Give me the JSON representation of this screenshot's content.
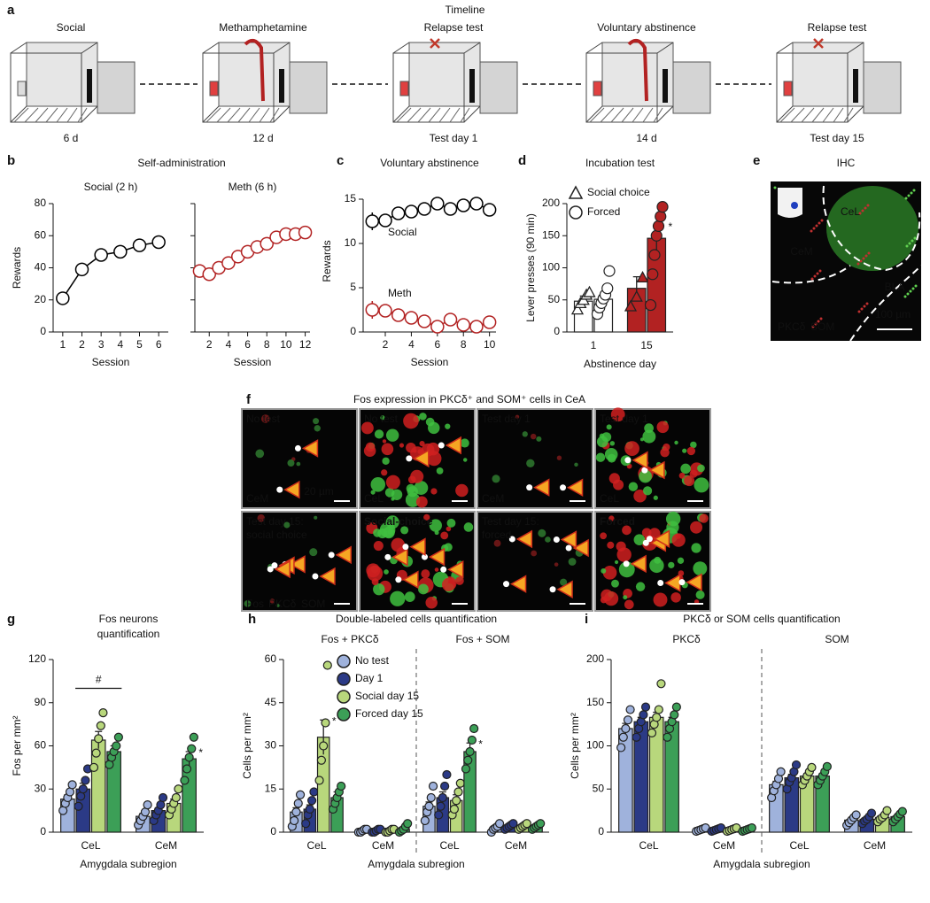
{
  "figure": {
    "panel_labels": [
      "a",
      "b",
      "c",
      "d",
      "e",
      "f",
      "g",
      "h",
      "i"
    ],
    "timeline": {
      "title": "Timeline",
      "stages": [
        {
          "label": "Social",
          "color": "#000000",
          "duration": "6 d"
        },
        {
          "label": "Methamphetamine",
          "color": "#b22222",
          "duration": "12 d"
        },
        {
          "label": "Relapse test",
          "color": "#b22222",
          "duration": "Test day 1"
        },
        {
          "label": "Voluntary abstinence",
          "color": "#1f3fbf",
          "duration": "14 d"
        },
        {
          "label": "Relapse test",
          "color": "#b22222",
          "duration": "Test day 15"
        }
      ]
    },
    "ihc": {
      "title": "IHC",
      "regions": [
        "CeL",
        "CeM",
        "BLA"
      ],
      "channels": [
        "PKCδ",
        "SOM"
      ],
      "scale_bar": "100 µm"
    },
    "fos_images": {
      "title": "Fos expression in PKCδ⁺ and SOM⁺ cells in CeA",
      "tiles": [
        {
          "label": [
            "No test"
          ],
          "region": "CeM"
        },
        {
          "label": [
            "No test"
          ],
          "region": "CeL"
        },
        {
          "label": [
            "Test day 1"
          ],
          "region": "CeM"
        },
        {
          "label": [
            "Test day 1"
          ],
          "region": "CeL"
        },
        {
          "label": [
            "Test day 15:",
            "social choice"
          ]
        },
        {
          "label": [
            "Social-choice"
          ]
        },
        {
          "label": [
            "Test day 15:",
            "forced"
          ]
        },
        {
          "label": [
            "Forced"
          ]
        }
      ],
      "channels": [
        "Fos",
        "PKCδ",
        "SOM"
      ],
      "scale_bar": "20 µm"
    }
  },
  "chart_data": [
    {
      "type": "line",
      "title": "Self-administration",
      "subtitle": "Social (2 h)",
      "ylabel": "Rewards",
      "xlabel": "Session",
      "x": [
        1,
        2,
        3,
        4,
        5,
        6
      ],
      "values": [
        21,
        39,
        48,
        50,
        54,
        56
      ],
      "color": "#000000",
      "xlim": [
        0.5,
        6.5
      ],
      "xticks": [
        1,
        2,
        3,
        4,
        5,
        6
      ],
      "ylim": [
        0,
        80
      ],
      "yticks": [
        0,
        20,
        40,
        60,
        80
      ]
    },
    {
      "type": "line",
      "subtitle": "Meth (6 h)",
      "xlabel": "Session",
      "x": [
        1,
        2,
        3,
        4,
        5,
        6,
        7,
        8,
        9,
        10,
        11,
        12
      ],
      "values": [
        38,
        36,
        40,
        43,
        47,
        50,
        53,
        55,
        59,
        61,
        61,
        62
      ],
      "color": "#b22222",
      "xlim": [
        0.5,
        12.5
      ],
      "xticks": [
        2,
        4,
        6,
        8,
        10,
        12
      ],
      "ylim": [
        0,
        80
      ],
      "yticks": [
        0,
        20,
        40,
        60,
        80
      ]
    },
    {
      "type": "line",
      "title": "Voluntary abstinence",
      "ylabel": "Rewards",
      "xlabel": "Session",
      "x": [
        1,
        2,
        3,
        4,
        5,
        6,
        7,
        8,
        9,
        10
      ],
      "series": [
        {
          "name": "Social",
          "color": "#000000",
          "values": [
            12.5,
            12.6,
            13.4,
            13.6,
            13.9,
            14.5,
            13.9,
            14.3,
            14.5,
            13.8
          ],
          "errors": [
            1,
            0.5,
            0.4,
            0.4,
            0.4,
            0.4,
            0.4,
            0.4,
            0.4,
            0.4
          ]
        },
        {
          "name": "Meth",
          "color": "#b22222",
          "values": [
            2.5,
            2.4,
            1.9,
            1.6,
            1.2,
            0.6,
            1.4,
            0.8,
            0.6,
            1.1
          ],
          "errors": [
            1,
            0.4,
            0.3,
            0.3,
            0.3,
            0.3,
            0.3,
            0.3,
            0.3,
            0.3
          ]
        }
      ],
      "xlim": [
        0.3,
        10.5
      ],
      "xticks": [
        2,
        4,
        6,
        8,
        10
      ],
      "ylim": [
        0,
        16
      ],
      "yticks": [
        0,
        5,
        10,
        15
      ]
    },
    {
      "type": "bar",
      "title": "Incubation test",
      "ylabel": "Lever presses (90 min)",
      "xlabel": "Abstinence day",
      "categories": [
        "1",
        "15"
      ],
      "category_colors": [
        "#ffffff",
        "#b22222"
      ],
      "legend": true,
      "series": [
        {
          "name": "Social choice",
          "marker": "triangle",
          "values": [
            48,
            68
          ],
          "errors": [
            8,
            18
          ],
          "points": [
            [
              35,
              45,
              50,
              58,
              62
            ],
            [
              40,
              55,
              85
            ]
          ]
        },
        {
          "name": "Forced",
          "marker": "circle",
          "values": [
            51,
            146
          ],
          "errors": [
            8,
            20
          ],
          "points": [
            [
              28,
              38,
              45,
              52,
              58,
              68,
              95
            ],
            [
              42,
              90,
              120,
              150,
              165,
              180,
              195
            ]
          ]
        }
      ],
      "annotations": [
        "*"
      ],
      "ylim": [
        0,
        200
      ],
      "yticks": [
        0,
        50,
        100,
        150,
        200
      ]
    },
    {
      "type": "bar",
      "title": [
        "Fos neurons",
        "quantification"
      ],
      "ylabel": "Fos per mm²",
      "xlabel": "Amygdala subregion",
      "categories": [
        "CeL",
        "CeM"
      ],
      "series": [
        {
          "color": "#9fb2dc",
          "values": [
            23,
            11
          ],
          "errors": [
            3,
            2
          ],
          "points": [
            [
              15,
              20,
              24,
              28,
              33
            ],
            [
              5,
              8,
              11,
              14,
              19
            ]
          ]
        },
        {
          "color": "#2b3a86",
          "values": [
            30,
            15
          ],
          "errors": [
            4,
            2
          ],
          "points": [
            [
              18,
              25,
              30,
              36,
              44
            ],
            [
              8,
              12,
              15,
              19,
              24
            ]
          ]
        },
        {
          "color": "#b8d77c",
          "values": [
            64,
            20
          ],
          "errors": [
            6,
            3
          ],
          "points": [
            [
              45,
              55,
              65,
              74,
              83
            ],
            [
              12,
              16,
              20,
              24,
              30
            ]
          ]
        },
        {
          "color": "#3c9f57",
          "values": [
            56,
            51
          ],
          "errors": [
            4,
            5
          ],
          "points": [
            [
              47,
              52,
              56,
              60,
              66
            ],
            [
              36,
              44,
              52,
              58,
              66
            ]
          ]
        }
      ],
      "annotations": [
        "#",
        "*"
      ],
      "ylim": [
        0,
        120
      ],
      "yticks": [
        0,
        30,
        60,
        90,
        120
      ]
    },
    {
      "type": "bar",
      "title": "Double-labeled cells quantification",
      "ylabel": "Cells per mm²",
      "xlabel": "Amygdala subregion",
      "groups": [
        "Fos + PKCδ",
        "Fos + SOM"
      ],
      "categories": [
        "CeL",
        "CeM",
        "CeL",
        "CeM"
      ],
      "legend": true,
      "series": [
        {
          "name": "No test",
          "color": "#9fb2dc",
          "values": [
            7,
            0.5,
            9,
            1.5
          ],
          "errors": [
            1.5,
            0.3,
            1.5,
            0.4
          ],
          "points": [
            [
              2,
              4,
              7,
              10,
              13
            ],
            [
              0,
              0,
              0.5,
              1,
              1
            ],
            [
              4,
              7,
              9,
              12,
              16
            ],
            [
              0,
              1,
              1.5,
              2,
              3
            ]
          ]
        },
        {
          "name": "Day 1",
          "color": "#2b3a86",
          "values": [
            8,
            0.5,
            12,
            2
          ],
          "errors": [
            1.5,
            0.3,
            2,
            0.5
          ],
          "points": [
            [
              3,
              6,
              8,
              11,
              14
            ],
            [
              0,
              0,
              0.5,
              1,
              1
            ],
            [
              6,
              9,
              12,
              16,
              20
            ],
            [
              1,
              1.5,
              2,
              2.5,
              3
            ]
          ]
        },
        {
          "name": "Social day 15",
          "color": "#b8d77c",
          "values": [
            33,
            0.5,
            11,
            2
          ],
          "errors": [
            6,
            0.3,
            2,
            0.5
          ],
          "points": [
            [
              18,
              25,
              30,
              38,
              58
            ],
            [
              0,
              0,
              0.5,
              1,
              1
            ],
            [
              6,
              8,
              11,
              14,
              17
            ],
            [
              1,
              1.5,
              2,
              2.5,
              3
            ]
          ]
        },
        {
          "name": "Forced day 15",
          "color": "#3c9f57",
          "values": [
            12,
            1,
            28,
            2
          ],
          "errors": [
            2,
            0.5,
            3,
            0.5
          ],
          "points": [
            [
              8,
              10,
              12,
              14,
              16
            ],
            [
              0,
              0.5,
              1,
              2,
              3
            ],
            [
              22,
              25,
              28,
              32,
              36
            ],
            [
              1,
              1.5,
              2,
              2.5,
              3
            ]
          ]
        }
      ],
      "annotations": [
        "*",
        "*"
      ],
      "ylim": [
        0,
        60
      ],
      "yticks": [
        0,
        15,
        30,
        45,
        60
      ]
    },
    {
      "type": "bar",
      "title": "PKCδ or SOM cells quantification",
      "ylabel": "Cells per mm²",
      "xlabel": "Amygdala subregion",
      "groups": [
        "PKCδ",
        "SOM"
      ],
      "categories": [
        "CeL",
        "CeM",
        "CeL",
        "CeM"
      ],
      "series": [
        {
          "color": "#9fb2dc",
          "values": [
            120,
            3,
            55,
            14
          ],
          "errors": [
            6,
            0.5,
            4,
            2
          ],
          "points": [
            [
              98,
              110,
              120,
              130,
              142
            ],
            [
              1,
              2,
              3,
              4,
              5
            ],
            [
              40,
              48,
              55,
              62,
              70
            ],
            [
              8,
              11,
              14,
              17,
              20
            ]
          ]
        },
        {
          "color": "#2b3a86",
          "values": [
            128,
            3,
            63,
            15
          ],
          "errors": [
            5,
            0.5,
            4,
            2
          ],
          "points": [
            [
              110,
              120,
              128,
              136,
              145
            ],
            [
              1,
              2,
              3,
              4,
              5
            ],
            [
              50,
              58,
              63,
              70,
              78
            ],
            [
              10,
              13,
              15,
              18,
              22
            ]
          ]
        },
        {
          "color": "#b8d77c",
          "values": [
            133,
            3,
            65,
            17
          ],
          "errors": [
            6,
            0.5,
            3,
            2
          ],
          "points": [
            [
              115,
              125,
              133,
              142,
              172
            ],
            [
              1,
              2,
              3,
              4,
              5
            ],
            [
              55,
              60,
              65,
              70,
              75
            ],
            [
              12,
              15,
              17,
              20,
              25
            ]
          ]
        },
        {
          "color": "#3c9f57",
          "values": [
            128,
            3,
            65,
            18
          ],
          "errors": [
            5,
            0.5,
            3,
            2
          ],
          "points": [
            [
              110,
              120,
              128,
              136,
              145
            ],
            [
              1,
              2,
              3,
              4,
              5
            ],
            [
              55,
              60,
              65,
              70,
              76
            ],
            [
              12,
              15,
              18,
              21,
              24
            ]
          ]
        }
      ],
      "ylim": [
        0,
        200
      ],
      "yticks": [
        0,
        50,
        100,
        150,
        200
      ]
    }
  ]
}
